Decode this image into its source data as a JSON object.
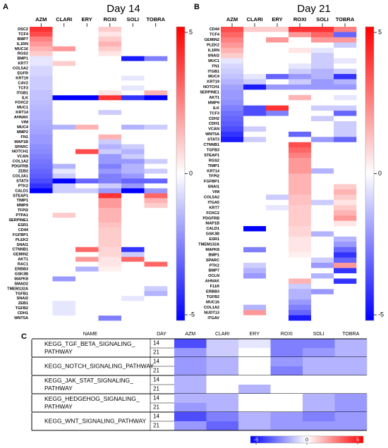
{
  "chart_data": [
    {
      "type": "heatmap",
      "panel": "A",
      "title": "Day 14",
      "columns": [
        "AZM",
        "CLARI",
        "ERY",
        "ROXI",
        "SOLI",
        "TOBRA"
      ],
      "rows": [
        "DSC2",
        "TCF4",
        "BMP7",
        "IL1RN",
        "MUC16",
        "RGS2",
        "BMP1",
        "KRT7",
        "COL5A2",
        "EGFR",
        "KRT19",
        "CAV2",
        "TCF3",
        "ITGB1",
        "ILK",
        "FOXC2",
        "MUC1",
        "KRT14",
        "AHNAK",
        "VIM",
        "MUC4",
        "MMP2",
        "FN1",
        "MAP1B",
        "SPARC",
        "NOTCH1",
        "VCAN",
        "COL1A2",
        "PDGFRB",
        "ZEB2",
        "COL3A1",
        "STAT3",
        "PTK2",
        "CALD1",
        "STEAP1",
        "TIMP1",
        "MMP9",
        "TFPI2",
        "PTPA1",
        "SERPINE1",
        "ESR1",
        "CD44",
        "FGFBP1",
        "PLEK2",
        "SNAI1",
        "CTNNB1",
        "GEMIN2",
        "AKT1",
        "RAC1",
        "ERBB3",
        "GSK3B",
        "MAPK8",
        "SMAD2",
        "TMEM132A",
        "TGFB1",
        "SNAI2",
        "ZEB1",
        "TGFB2",
        "CDH1",
        "WNT5A"
      ],
      "values": [
        [
          4,
          0,
          0,
          1,
          0,
          0
        ],
        [
          3.5,
          0,
          0,
          0.5,
          0,
          0
        ],
        [
          2.5,
          0,
          0,
          1,
          0,
          0
        ],
        [
          2,
          0,
          0,
          1.5,
          0,
          0
        ],
        [
          1.5,
          2,
          0,
          1,
          0,
          0
        ],
        [
          1,
          0,
          0,
          0.5,
          0,
          0
        ],
        [
          -0.5,
          0,
          0,
          0,
          -4.5,
          -2.5
        ],
        [
          -0.5,
          1,
          0,
          0,
          0,
          0
        ],
        [
          -0.8,
          0,
          0,
          0,
          0,
          0
        ],
        [
          -0.8,
          0,
          0,
          0,
          0,
          0
        ],
        [
          -1,
          0,
          0,
          0,
          -0.5,
          0
        ],
        [
          -1,
          0,
          0,
          0,
          0,
          0
        ],
        [
          -1,
          0,
          0,
          0,
          -0.5,
          0
        ],
        [
          -1.2,
          0,
          0,
          0.5,
          0,
          1.5
        ],
        [
          -1.2,
          -5,
          -5,
          4,
          -4,
          -5
        ],
        [
          -1.3,
          0,
          0,
          0,
          0,
          0
        ],
        [
          -1.4,
          0,
          0,
          0,
          0,
          0
        ],
        [
          -1.5,
          0,
          0,
          -1,
          0,
          0
        ],
        [
          -1.5,
          0,
          0,
          0,
          0,
          0
        ],
        [
          -1.6,
          0,
          0,
          0,
          0,
          0
        ],
        [
          -1.7,
          -1.5,
          1.5,
          0,
          -1.5,
          -1
        ],
        [
          -1.8,
          0,
          0,
          0,
          0,
          0
        ],
        [
          -2,
          0,
          0,
          1.5,
          0,
          0
        ],
        [
          -2,
          0,
          0,
          -1,
          0,
          0
        ],
        [
          -2.2,
          0,
          0,
          -1.5,
          -1,
          0
        ],
        [
          -2.3,
          0,
          3.5,
          -1,
          -1.5,
          0
        ],
        [
          -2.5,
          0,
          0,
          -2,
          -1,
          0
        ],
        [
          -2.7,
          0,
          0,
          -2,
          -2,
          -1
        ],
        [
          -2.8,
          -1.5,
          0,
          -2.5,
          -1.5,
          0
        ],
        [
          -3,
          -0.5,
          0,
          -2,
          -1.5,
          -1
        ],
        [
          -3.2,
          -1,
          0,
          -2.5,
          -2,
          0
        ],
        [
          -3.5,
          -5,
          -3,
          -2.5,
          -3,
          -3
        ],
        [
          -4,
          -1,
          0,
          -1,
          -2,
          0
        ],
        [
          -5,
          -1,
          -1,
          -2,
          -5,
          -2
        ],
        [
          0,
          0,
          0,
          4,
          0,
          3
        ],
        [
          0,
          0,
          0,
          2,
          0,
          1.5
        ],
        [
          0,
          0,
          0,
          2,
          0,
          1
        ],
        [
          0,
          0,
          0,
          1.5,
          0,
          0
        ],
        [
          0,
          1,
          0,
          1.5,
          0,
          0
        ],
        [
          0,
          0,
          0,
          1.5,
          0,
          0
        ],
        [
          0,
          0,
          0,
          1.2,
          0,
          0
        ],
        [
          0,
          0,
          0,
          1,
          0,
          0
        ],
        [
          0,
          0,
          0,
          1,
          0,
          0
        ],
        [
          0,
          0,
          0,
          1,
          0,
          0
        ],
        [
          0,
          0,
          0,
          1,
          0,
          0
        ],
        [
          0,
          0,
          3,
          0.8,
          -4,
          0
        ],
        [
          0,
          0,
          0,
          0.8,
          -1,
          0
        ],
        [
          0,
          0,
          2,
          0.5,
          3,
          0
        ],
        [
          0,
          0,
          0,
          0.5,
          0,
          3
        ],
        [
          0,
          0,
          -1.5,
          0.3,
          0,
          0
        ],
        [
          0,
          0,
          0,
          0,
          0,
          0
        ],
        [
          0,
          -2,
          0,
          0,
          0,
          0
        ],
        [
          0,
          0,
          0,
          0,
          0,
          0
        ],
        [
          0,
          0,
          0,
          0,
          0,
          -1
        ],
        [
          0,
          0,
          0,
          0,
          0,
          -1.5
        ],
        [
          0,
          0,
          0,
          0,
          -0.5,
          0
        ],
        [
          0,
          -0.5,
          0,
          0,
          0,
          0
        ],
        [
          0,
          -0.5,
          0,
          0,
          0,
          0
        ],
        [
          0,
          -0.5,
          0,
          0,
          0,
          0
        ],
        [
          0,
          0,
          0,
          -2.5,
          0,
          0
        ]
      ],
      "zlim": [
        -5,
        5
      ],
      "zticks": [
        5,
        0,
        -5
      ],
      "colors": [
        "#0000ff",
        "#ffffff",
        "#ff0000"
      ]
    },
    {
      "type": "heatmap",
      "panel": "B",
      "title": "Day 21",
      "columns": [
        "AZM",
        "CLARI",
        "ERY",
        "ROXI",
        "SOLI",
        "TOBRA"
      ],
      "rows": [
        "CD44",
        "TCF4",
        "GEMIN2",
        "PLEK2",
        "IL1RN",
        "SNAI2",
        "MUC1",
        "FN1",
        "ITGB1",
        "MUC4",
        "KRT19",
        "NOTCH1",
        "SERPINE1",
        "AKT1",
        "MMP9",
        "ILK",
        "TCF3",
        "CDH2",
        "CDH1",
        "VCAN",
        "WNT5A",
        "STAT3",
        "CTNNB1",
        "TGFB3",
        "STEAP1",
        "RGS2",
        "TIMP1",
        "KRT14",
        "TFPI2",
        "FGFBP1",
        "SNAI1",
        "VIM",
        "COL5A2",
        "ITGA5",
        "KRT7",
        "FOXC2",
        "PDGFRB",
        "MAP1B",
        "CALD1",
        "GSK3B",
        "ESR1",
        "TMEM132A",
        "MAPK8",
        "BMP1",
        "SPARC",
        "PTK2",
        "BMP7",
        "OCLN",
        "AHNAK",
        "F11R",
        "ERBB3",
        "TGFB2",
        "MUC16",
        "COL1A2",
        "NUDT13",
        "ITGAV"
      ],
      "values": [
        [
          3.5,
          1,
          1,
          4,
          4,
          2.5
        ],
        [
          3,
          0,
          0,
          2,
          3,
          -3
        ],
        [
          2.5,
          0,
          2,
          0,
          2,
          2
        ],
        [
          2,
          0,
          0,
          0,
          0,
          -1
        ],
        [
          1.5,
          0,
          0,
          0.5,
          -0.5,
          0
        ],
        [
          1,
          0,
          0,
          0,
          -1,
          0
        ],
        [
          -0.5,
          0,
          0,
          0,
          -1,
          -0.5
        ],
        [
          -0.8,
          0,
          0,
          -0.5,
          -1,
          0
        ],
        [
          -1,
          0,
          0,
          -1,
          -1.5,
          -1
        ],
        [
          -1.2,
          -0.5,
          -3,
          -2,
          -1.5,
          -4
        ],
        [
          -1.5,
          -1,
          0,
          -1,
          -2,
          -1.5
        ],
        [
          -1.8,
          -4.5,
          -2,
          -2,
          -2,
          -2
        ],
        [
          -2,
          0,
          0,
          0,
          0,
          0
        ],
        [
          -2,
          0,
          0,
          1.5,
          0,
          -0.5
        ],
        [
          -2.2,
          0,
          0,
          0,
          0,
          0
        ],
        [
          -2.5,
          -3.5,
          4,
          0,
          -1,
          -1
        ],
        [
          -2.8,
          -3.5,
          -2.5,
          0,
          0,
          -3
        ],
        [
          -3,
          0,
          0,
          0,
          -1,
          0
        ],
        [
          -3.2,
          0,
          0,
          0,
          0,
          -1
        ],
        [
          -3.5,
          -1,
          0,
          0,
          0,
          -1
        ],
        [
          -4,
          0,
          0,
          -3,
          0,
          -1
        ],
        [
          -4.5,
          -1,
          0,
          0,
          -2,
          -3
        ],
        [
          0,
          0,
          0,
          3.5,
          0,
          0
        ],
        [
          0,
          0,
          0,
          3,
          0,
          0
        ],
        [
          0,
          0,
          0,
          2.5,
          0,
          0
        ],
        [
          0,
          0,
          0,
          2,
          0,
          0
        ],
        [
          0,
          0,
          0,
          2,
          0,
          0
        ],
        [
          0,
          0,
          0,
          2,
          -1.5,
          0
        ],
        [
          0,
          0,
          0,
          1.5,
          0,
          0
        ],
        [
          0,
          0,
          0,
          1.5,
          0,
          0
        ],
        [
          0,
          0,
          0,
          1.5,
          0,
          1
        ],
        [
          0,
          0,
          0,
          1.5,
          0,
          1.5
        ],
        [
          0,
          0,
          -1,
          1.2,
          0,
          1
        ],
        [
          0,
          0,
          0,
          1.2,
          -1,
          0.5
        ],
        [
          0,
          0,
          -0.5,
          1,
          0,
          1
        ],
        [
          0,
          0,
          0,
          1,
          0,
          1.5
        ],
        [
          0,
          0,
          0,
          1,
          0,
          2
        ],
        [
          0,
          0,
          0,
          1,
          0,
          0.5
        ],
        [
          0,
          -5,
          0,
          0.8,
          0,
          0
        ],
        [
          0,
          0,
          0,
          0.8,
          -1.5,
          0
        ],
        [
          0,
          0,
          0,
          0.5,
          0,
          -1.5
        ],
        [
          0,
          0,
          0,
          0.5,
          0,
          -2
        ],
        [
          0,
          -2.5,
          0,
          0.5,
          0,
          -3
        ],
        [
          0,
          0,
          0,
          0.3,
          0,
          -4
        ],
        [
          0,
          0,
          0,
          0,
          -1,
          -3
        ],
        [
          0,
          -1,
          0,
          0,
          -2,
          2
        ],
        [
          0,
          -1.5,
          0,
          0,
          0,
          -4
        ],
        [
          0,
          -2,
          0,
          0,
          -1.5,
          0
        ],
        [
          0,
          0,
          0,
          1.5,
          0,
          -4
        ],
        [
          0,
          0,
          0,
          -1,
          0,
          0
        ],
        [
          0,
          0,
          0,
          -1.5,
          -2,
          0
        ],
        [
          0,
          0,
          0,
          -1.5,
          0,
          0
        ],
        [
          0,
          0,
          0,
          -2,
          0,
          0
        ],
        [
          0,
          -1.5,
          0,
          -2.5,
          0,
          0
        ],
        [
          0,
          2,
          0,
          -3,
          0,
          0
        ],
        [
          0,
          0,
          0,
          -4.5,
          0,
          0
        ]
      ],
      "zlim": [
        -5,
        5
      ],
      "zticks": [
        5,
        0,
        -5
      ],
      "colors": [
        "#0000ff",
        "#ffffff",
        "#ff0000"
      ]
    },
    {
      "type": "heatmap-table",
      "panel": "C",
      "header": [
        "NAME",
        "DAY"
      ],
      "columns": [
        "AZM",
        "CLARI",
        "ERY",
        "ROXI",
        "SOLI",
        "TOBRA"
      ],
      "pathways": [
        {
          "name": [
            "KEGG_TGF_BETA_SIGNALING_",
            "PATHWAY"
          ],
          "days": [
            14,
            21
          ],
          "values": [
            [
              -3.5,
              -1,
              -0.5,
              -2.5,
              -2.5,
              -1.5
            ],
            [
              -2,
              -1,
              0,
              -2.5,
              -2,
              -1.5
            ]
          ]
        },
        {
          "name": [
            "KEGG_NOTCH_SIGNALING_PATHWAY"
          ],
          "days": [
            14,
            21
          ],
          "values": [
            [
              -2,
              -1.5,
              0,
              -2,
              -1.5,
              -1.5
            ],
            [
              -2,
              -1.5,
              0,
              -2.5,
              -1.5,
              -1.5
            ]
          ]
        },
        {
          "name": [
            "KEGG_JAK_STAT_SIGNALING_",
            "PATHWAY"
          ],
          "days": [
            14,
            21
          ],
          "values": [
            [
              -1.5,
              0,
              0,
              0,
              0,
              0
            ],
            [
              -1.5,
              0,
              -1.5,
              0,
              0,
              0
            ]
          ]
        },
        {
          "name": [
            "KEGG_HEDGEHOG_SIGNALING_",
            "PATHWAY"
          ],
          "days": [
            14,
            21
          ],
          "values": [
            [
              -1.5,
              -1.5,
              0,
              0,
              -1.5,
              -2
            ],
            [
              -2,
              -1.5,
              0,
              0,
              -1.5,
              -2
            ]
          ]
        },
        {
          "name": [
            "KEGG_WNT_SIGNALING_PATHWAY"
          ],
          "days": [
            14,
            21
          ],
          "values": [
            [
              -3.5,
              -2.5,
              -1.5,
              -2,
              -2.5,
              -2
            ],
            [
              -2,
              -3,
              -1.5,
              -2,
              -2,
              -2
            ]
          ]
        }
      ],
      "zlim": [
        -5,
        5
      ],
      "zticks": [
        -5,
        0,
        5
      ],
      "colors": [
        "#0000ff",
        "#ffffff",
        "#ff0000"
      ]
    }
  ]
}
